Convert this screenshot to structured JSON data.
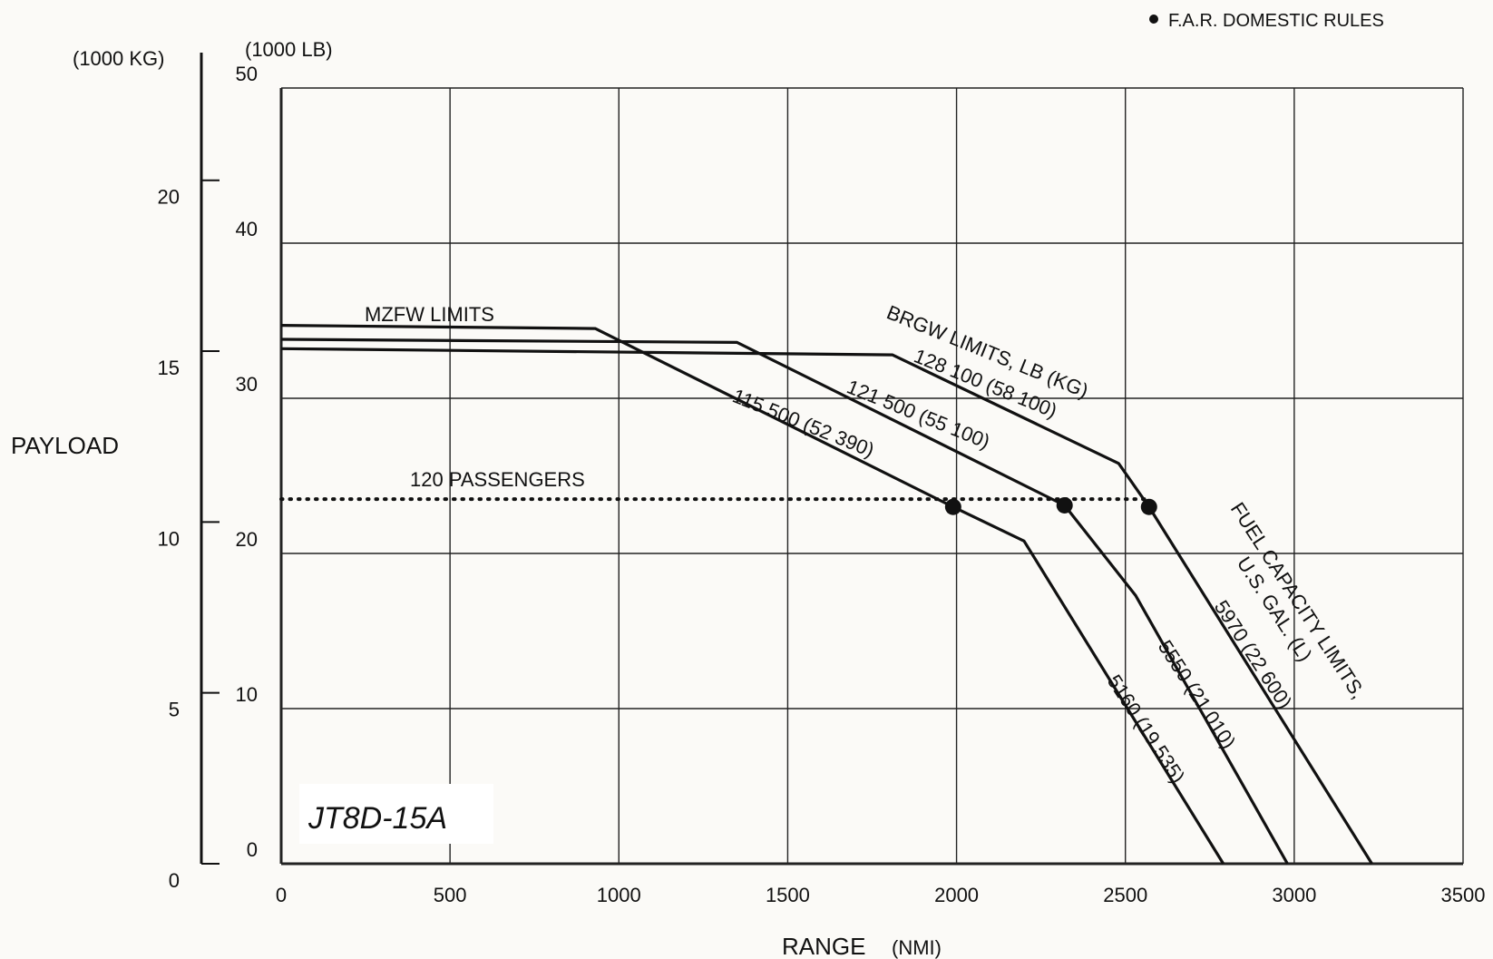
{
  "chart_data": {
    "type": "line",
    "xlabel": "RANGE",
    "xlabel_unit": "(NMI)",
    "ylabel": "PAYLOAD",
    "y_unit_left": "(1000 LB)",
    "y_unit_secondary": "(1000 KG)",
    "xlim": [
      0,
      3500
    ],
    "ylim": [
      0,
      50
    ],
    "y2lim_kg": [
      0,
      22.7
    ],
    "x_ticks": [
      "0",
      "500",
      "1000",
      "1500",
      "2000",
      "2500",
      "3000",
      "3500"
    ],
    "y_ticks": [
      "0",
      "10",
      "20",
      "30",
      "40",
      "50"
    ],
    "y2_ticks": [
      "0",
      "5",
      "10",
      "15",
      "20"
    ],
    "grid": true,
    "legend_note": "F.A.R. DOMESTIC RULES",
    "model_label": "JT8D-15A",
    "series": [
      {
        "label_lines": [
          "115 500 (52 390)"
        ],
        "points": [
          [
            0,
            34.7
          ],
          [
            930,
            34.5
          ],
          [
            1990,
            23.0
          ],
          [
            2200,
            20.8
          ],
          [
            2790,
            0
          ]
        ]
      },
      {
        "label_lines": [
          "121 500 (55 100)"
        ],
        "points": [
          [
            0,
            33.8
          ],
          [
            1350,
            33.6
          ],
          [
            2320,
            23.1
          ],
          [
            2530,
            17.3
          ],
          [
            2980,
            0
          ]
        ]
      },
      {
        "label_lines": [
          "BRGW LIMITS, LB (KG)",
          "128 100 (58 100)"
        ],
        "points": [
          [
            0,
            33.2
          ],
          [
            1810,
            32.8
          ],
          [
            2480,
            25.8
          ],
          [
            2570,
            23.0
          ],
          [
            3230,
            0
          ]
        ]
      }
    ],
    "fuel_limit_labels": [
      "5160 (19 535)",
      "5550 (21 010)",
      "5970 (22 600)"
    ],
    "fuel_limit_title": [
      "FUEL CAPACITY LIMITS,",
      "U.S. GAL. (L)"
    ],
    "mzfw_label": "MZFW LIMITS",
    "passenger_line": {
      "label": "120 PASSENGERS",
      "y": 23.5,
      "x": [
        0,
        2570
      ]
    },
    "points_marked": [
      [
        1990,
        23.0
      ],
      [
        2320,
        23.1
      ],
      [
        2570,
        23.0
      ]
    ]
  }
}
